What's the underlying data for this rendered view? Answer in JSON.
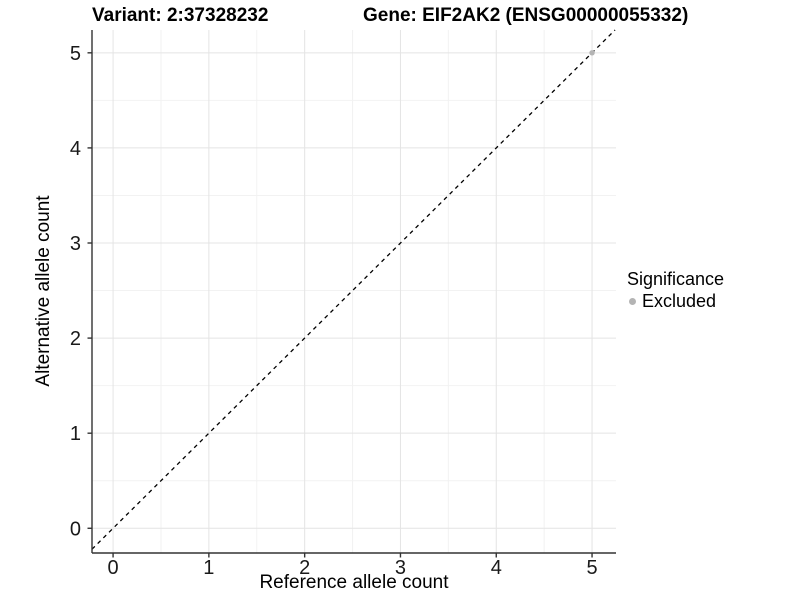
{
  "chart_data": {
    "type": "scatter",
    "title_left": "Variant: 2:37328232",
    "title_right": "Gene: EIF2AK2 (ENSG00000055332)",
    "xlabel": "Reference allele count",
    "ylabel": "Alternative allele count",
    "x_ticks": [
      0,
      1,
      2,
      3,
      4,
      5
    ],
    "y_ticks": [
      0,
      1,
      2,
      3,
      4,
      5
    ],
    "x_minor_ticks": [
      0.5,
      1.5,
      2.5,
      3.5,
      4.5
    ],
    "y_minor_ticks": [
      0.5,
      1.5,
      2.5,
      3.5,
      4.5
    ],
    "xlim": [
      -0.22,
      5.25
    ],
    "ylim": [
      -0.26,
      5.24
    ],
    "grid": "major-and-minor",
    "identity_line": {
      "style": "dashed",
      "color": "#000000",
      "equation": "y = x"
    },
    "series": [
      {
        "name": "Excluded",
        "color": "#b4b4b4",
        "points": [
          {
            "x": 5,
            "y": 5
          }
        ]
      }
    ],
    "legend": {
      "title": "Significance",
      "position": "right",
      "items": [
        {
          "label": "Excluded",
          "color": "#b4b4b4"
        }
      ]
    },
    "colors": {
      "grid_major": "#e4e4e4",
      "grid_minor": "#f2f2f2",
      "axis_line": "#333333",
      "tick_text": "#1a1a1a",
      "panel_background": "#ffffff"
    }
  }
}
